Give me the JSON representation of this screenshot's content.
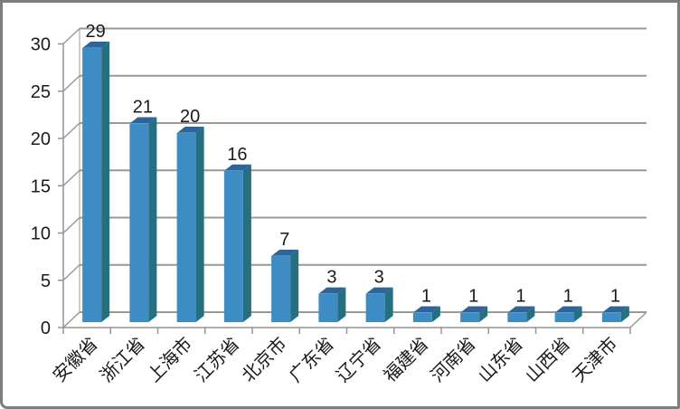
{
  "window": {
    "background": "#ffffff",
    "border_color": "#7d7d7d"
  },
  "chart_data": {
    "type": "bar",
    "style": "3d-column",
    "title": "",
    "xlabel": "",
    "ylabel": "",
    "categories": [
      "安徽省",
      "浙江省",
      "上海市",
      "江苏省",
      "北京市",
      "广东省",
      "辽宁省",
      "福建省",
      "河南省",
      "山东省",
      "山西省",
      "天津市"
    ],
    "values": [
      29,
      21,
      20,
      16,
      7,
      3,
      3,
      1,
      1,
      1,
      1,
      1
    ],
    "yticks": [
      0,
      5,
      10,
      15,
      20,
      25,
      30
    ],
    "ylim": [
      0,
      30
    ],
    "grid": true,
    "legend": "none",
    "data_labels_shown": true,
    "category_label_rotation_deg": 45,
    "colors": {
      "bar_front": "#3d8dc4",
      "bar_top": "#2d659a",
      "bar_side": "#266f7e",
      "bar_top_edge": "#6aaede",
      "grid": "#989898",
      "axis": "#949494",
      "text": "#1a1a1a"
    }
  }
}
